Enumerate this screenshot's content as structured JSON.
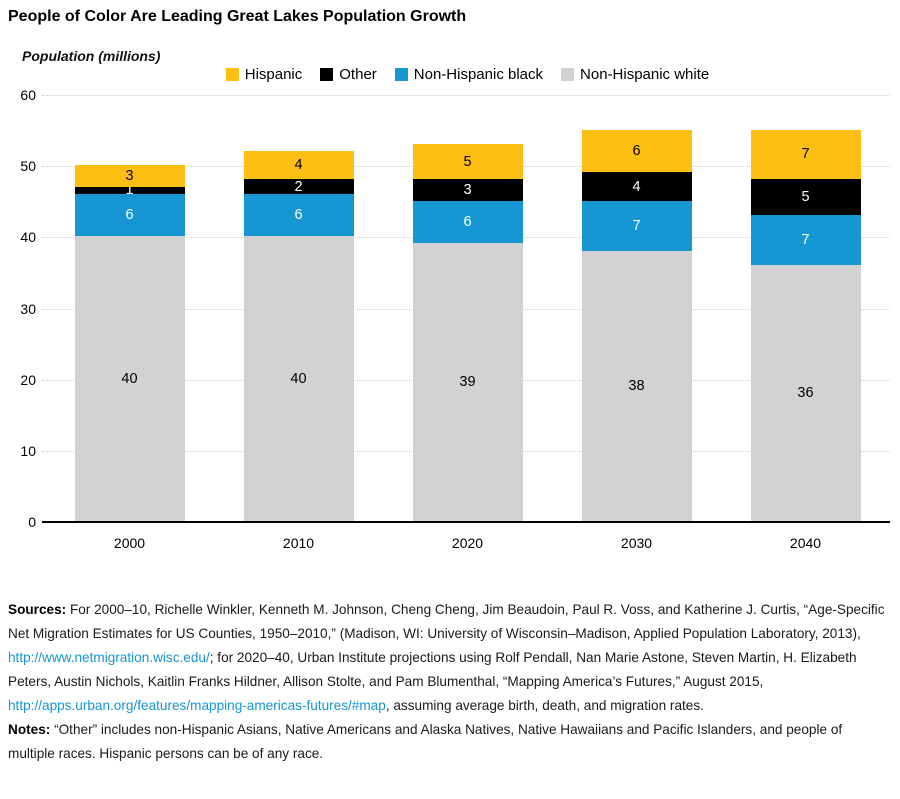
{
  "title": "People of Color Are Leading Great Lakes Population Growth",
  "y_axis_title": "Population (millions)",
  "chart_data": {
    "type": "bar",
    "stacked": true,
    "title": "People of Color Are Leading Great Lakes Population Growth",
    "ylabel": "Population (millions)",
    "xlabel": "",
    "ylim": [
      0,
      60
    ],
    "yticks": [
      0,
      10,
      20,
      30,
      40,
      50,
      60
    ],
    "grid": "horizontal-dotted",
    "legend_position": "top",
    "categories": [
      "2000",
      "2010",
      "2020",
      "2030",
      "2040"
    ],
    "series": [
      {
        "name": "Non-Hispanic white",
        "color": "#d2d2d2",
        "label_color": "#000000",
        "values": [
          40,
          40,
          39,
          38,
          36
        ]
      },
      {
        "name": "Non-Hispanic black",
        "color": "#1696d2",
        "label_color": "#ffffff",
        "values": [
          6,
          6,
          6,
          7,
          7
        ]
      },
      {
        "name": "Other",
        "color": "#000000",
        "label_color": "#ffffff",
        "values": [
          1,
          2,
          3,
          4,
          5
        ]
      },
      {
        "name": "Hispanic",
        "color": "#fdbf11",
        "label_color": "#000000",
        "values": [
          3,
          4,
          5,
          6,
          7
        ]
      }
    ],
    "legend_order": [
      "Hispanic",
      "Other",
      "Non-Hispanic black",
      "Non-Hispanic white"
    ]
  },
  "colors": {
    "hispanic": "#fdbf11",
    "other": "#000000",
    "non_hispanic_black": "#1696d2",
    "non_hispanic_white": "#d2d2d2",
    "link": "#1696d2",
    "gridline": "#cfcfcf",
    "axis": "#000000"
  },
  "footer": {
    "sources_segments": [
      {
        "t": "Sources:",
        "b": true
      },
      {
        "t": " For 2000–10, Richelle Winkler, Kenneth M. Johnson, Cheng Cheng, Jim Beaudoin, Paul R. Voss, and Katherine J. Curtis, “Age-Specific Net Migration Estimates for US Counties, 1950–2010,” (Madison, WI: University of Wisconsin–Madison, Applied Population Laboratory, 2013), "
      },
      {
        "t": "http://www.netmigration.wisc.edu/",
        "link": true
      },
      {
        "t": "; for 2020–40, Urban Institute projections using Rolf Pendall, Nan Marie Astone, Steven Martin, H. Elizabeth Peters, Austin Nichols, Kaitlin Franks Hildner, Allison Stolte, and Pam Blumenthal, “Mapping America’s Futures,” August 2015, "
      },
      {
        "t": "http://apps.urban.org/features/mapping-americas-futures/#map",
        "link": true
      },
      {
        "t": ", assuming average birth, death, and migration rates."
      }
    ],
    "notes_segments": [
      {
        "t": "Notes:",
        "b": true
      },
      {
        "t": " “Other” includes non-Hispanic Asians, Native Americans and Alaska Natives, Native Hawaiians and Pacific Islanders, and people of multiple races. Hispanic persons can be of any race."
      }
    ]
  }
}
